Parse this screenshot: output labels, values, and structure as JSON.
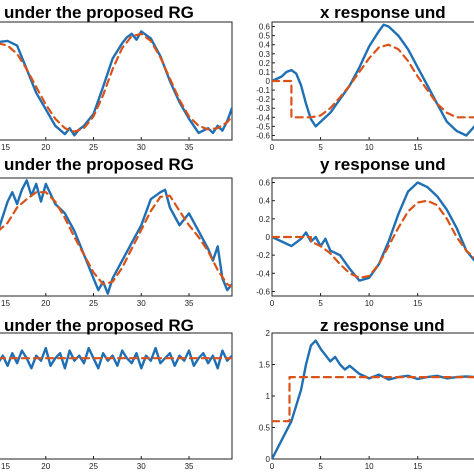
{
  "chart_data": [
    {
      "type": "line",
      "title": "under the proposed RG",
      "xlim": [
        15,
        39.5
      ],
      "ylim": [
        0,
        1
      ],
      "xticks": [
        15,
        20,
        25,
        30,
        35
      ],
      "yticks": [],
      "series": [
        {
          "color": "#1f6fb4",
          "style": "solid",
          "x": [
            15,
            16,
            17,
            18,
            19,
            20,
            21,
            22,
            22.5,
            23,
            23.5,
            24,
            25,
            26,
            27,
            28,
            28.5,
            29,
            29.5,
            30,
            31,
            32,
            33,
            34,
            35,
            36,
            37,
            37.5,
            38,
            38.5,
            39,
            39.5
          ],
          "y": [
            0.83,
            0.84,
            0.8,
            0.6,
            0.4,
            0.26,
            0.12,
            0.05,
            0.1,
            0.04,
            0.09,
            0.12,
            0.22,
            0.45,
            0.69,
            0.82,
            0.87,
            0.9,
            0.85,
            0.92,
            0.86,
            0.71,
            0.5,
            0.32,
            0.18,
            0.06,
            0.1,
            0.06,
            0.12,
            0.08,
            0.16,
            0.27
          ]
        },
        {
          "color": "#d95319",
          "style": "dashed",
          "x": [
            15,
            16,
            17,
            18,
            19,
            20,
            21,
            22,
            23,
            24,
            25,
            26,
            27,
            28,
            29,
            30,
            31,
            32,
            33,
            34,
            35,
            36,
            37,
            38,
            39,
            39.5
          ],
          "y": [
            0.82,
            0.8,
            0.73,
            0.6,
            0.45,
            0.3,
            0.18,
            0.1,
            0.07,
            0.1,
            0.2,
            0.38,
            0.6,
            0.78,
            0.88,
            0.9,
            0.84,
            0.7,
            0.52,
            0.34,
            0.2,
            0.12,
            0.09,
            0.1,
            0.15,
            0.2
          ]
        }
      ]
    },
    {
      "type": "line",
      "title": "x response und",
      "xlim": [
        0,
        21
      ],
      "ylim": [
        -0.65,
        0.65
      ],
      "xticks": [
        0,
        5,
        10,
        15
      ],
      "yticks": [
        0.6,
        0.5,
        0.4,
        0.3,
        0.2,
        0.1,
        0,
        -0.1,
        -0.2,
        -0.3,
        -0.4,
        -0.5,
        -0.6
      ],
      "ytick_labels": [
        "0.6",
        "0.5",
        "0.4",
        "0.3",
        "0.2",
        "0.1",
        "0",
        "-0.1",
        "-0.2",
        "-0.3",
        "-0.4",
        "-0.5",
        "-0.6"
      ],
      "series": [
        {
          "color": "#1f6fb4",
          "style": "solid",
          "x": [
            0,
            1,
            1.5,
            2,
            2.5,
            3,
            3.5,
            4,
            4.5,
            5,
            6,
            7,
            8,
            9,
            10,
            11,
            11.5,
            12,
            13,
            14,
            15,
            16,
            17,
            18,
            19,
            20,
            21
          ],
          "y": [
            0,
            0.05,
            0.1,
            0.12,
            0.08,
            -0.05,
            -0.25,
            -0.42,
            -0.5,
            -0.45,
            -0.35,
            -0.2,
            -0.05,
            0.15,
            0.38,
            0.55,
            0.62,
            0.6,
            0.5,
            0.35,
            0.15,
            -0.05,
            -0.25,
            -0.45,
            -0.55,
            -0.6,
            -0.48
          ]
        },
        {
          "color": "#d95319",
          "style": "dashed",
          "x": [
            0,
            1.8,
            2,
            2,
            4,
            5,
            6,
            7,
            8,
            9,
            10,
            11,
            12,
            13,
            14,
            15,
            16,
            17,
            18,
            19,
            20,
            21
          ],
          "y": [
            0,
            0,
            0,
            -0.4,
            -0.4,
            -0.38,
            -0.3,
            -0.18,
            -0.05,
            0.1,
            0.25,
            0.37,
            0.4,
            0.35,
            0.22,
            0.05,
            -0.1,
            -0.25,
            -0.35,
            -0.4,
            -0.4,
            -0.4
          ]
        }
      ]
    },
    {
      "type": "line",
      "title": "under the proposed RG",
      "xlim": [
        15,
        39.5
      ],
      "ylim": [
        0,
        1
      ],
      "xticks": [
        15,
        20,
        25,
        30,
        35
      ],
      "yticks": [],
      "series": [
        {
          "color": "#1f6fb4",
          "style": "solid",
          "x": [
            15,
            16,
            16.5,
            17,
            17.5,
            18,
            18.5,
            19,
            19.5,
            20,
            21,
            22,
            23,
            24,
            25,
            25.5,
            26,
            26.5,
            27,
            28,
            29,
            30,
            31,
            32,
            32.5,
            33,
            34,
            35,
            36,
            37,
            37.5,
            38,
            38.5,
            39,
            39.5
          ],
          "y": [
            0.55,
            0.8,
            0.88,
            0.78,
            0.9,
            0.98,
            0.85,
            0.95,
            0.8,
            0.95,
            0.78,
            0.7,
            0.55,
            0.35,
            0.15,
            0.05,
            0.12,
            0.02,
            0.15,
            0.3,
            0.45,
            0.6,
            0.82,
            0.88,
            0.9,
            0.75,
            0.6,
            0.7,
            0.55,
            0.4,
            0.3,
            0.42,
            0.15,
            0.05,
            0.1
          ]
        },
        {
          "color": "#d95319",
          "style": "dashed",
          "x": [
            15,
            16,
            17,
            18,
            19,
            20,
            21,
            22,
            23,
            24,
            25,
            26,
            27,
            28,
            29,
            30,
            31,
            32,
            33,
            34,
            35,
            36,
            37,
            38,
            39,
            39.5
          ],
          "y": [
            0.55,
            0.62,
            0.75,
            0.82,
            0.88,
            0.88,
            0.8,
            0.66,
            0.5,
            0.35,
            0.2,
            0.1,
            0.12,
            0.24,
            0.4,
            0.56,
            0.72,
            0.84,
            0.85,
            0.72,
            0.6,
            0.5,
            0.38,
            0.22,
            0.1,
            0.08
          ]
        }
      ]
    },
    {
      "type": "line",
      "title": "y response und",
      "xlim": [
        0,
        21
      ],
      "ylim": [
        -0.65,
        0.65
      ],
      "xticks": [
        0,
        5,
        10,
        15
      ],
      "yticks": [
        0.6,
        0.4,
        0.2,
        0,
        -0.2,
        -0.4,
        -0.6
      ],
      "ytick_labels": [
        "0.6",
        "0.4",
        "0.2",
        "0",
        "-0.2",
        "-0.4",
        "-0.6"
      ],
      "series": [
        {
          "color": "#1f6fb4",
          "style": "solid",
          "x": [
            0,
            1,
            2,
            3,
            3.5,
            4,
            4.5,
            5,
            5.5,
            6,
            7,
            8,
            9,
            10,
            11,
            12,
            13,
            14,
            15,
            16,
            17,
            18,
            19,
            20,
            21
          ],
          "y": [
            0,
            -0.05,
            -0.1,
            -0.02,
            0.05,
            -0.05,
            0,
            -0.1,
            -0.02,
            -0.15,
            -0.2,
            -0.35,
            -0.48,
            -0.45,
            -0.3,
            -0.05,
            0.25,
            0.5,
            0.6,
            0.55,
            0.45,
            0.3,
            0.1,
            -0.15,
            -0.28
          ]
        },
        {
          "color": "#d95319",
          "style": "dashed",
          "x": [
            0,
            4,
            4,
            5,
            6,
            7,
            8,
            9,
            10,
            11,
            12,
            13,
            14,
            15,
            16,
            17,
            18,
            19,
            20,
            21
          ],
          "y": [
            0,
            0,
            -0.05,
            -0.1,
            -0.18,
            -0.3,
            -0.4,
            -0.45,
            -0.43,
            -0.3,
            -0.1,
            0.1,
            0.28,
            0.38,
            0.4,
            0.35,
            0.2,
            0.0,
            -0.15,
            -0.25
          ]
        }
      ]
    },
    {
      "type": "line",
      "title": "under the proposed RG",
      "xlim": [
        15,
        39.5
      ],
      "ylim": [
        0,
        1
      ],
      "xticks": [
        15,
        20,
        25,
        30,
        35
      ],
      "yticks": [],
      "series": [
        {
          "color": "#1f6fb4",
          "style": "solid",
          "x": [
            15,
            15.5,
            16,
            16.5,
            17,
            17.5,
            18,
            18.5,
            19,
            19.5,
            20,
            20.5,
            21,
            21.5,
            22,
            22.5,
            23,
            23.5,
            24,
            24.5,
            25,
            25.5,
            26,
            26.5,
            27,
            27.5,
            28,
            28.5,
            29,
            29.5,
            30,
            30.5,
            31,
            31.5,
            32,
            32.5,
            33,
            33.5,
            34,
            34.5,
            35,
            35.5,
            36,
            36.5,
            37,
            37.5,
            38,
            38.5,
            39,
            39.5
          ],
          "y": [
            0.76,
            0.82,
            0.74,
            0.84,
            0.76,
            0.86,
            0.8,
            0.72,
            0.82,
            0.78,
            0.88,
            0.74,
            0.8,
            0.84,
            0.72,
            0.86,
            0.78,
            0.82,
            0.76,
            0.88,
            0.8,
            0.72,
            0.84,
            0.78,
            0.82,
            0.74,
            0.86,
            0.8,
            0.76,
            0.84,
            0.72,
            0.82,
            0.78,
            0.88,
            0.76,
            0.8,
            0.84,
            0.74,
            0.82,
            0.78,
            0.86,
            0.74,
            0.8,
            0.84,
            0.76,
            0.82,
            0.72,
            0.86,
            0.78,
            0.82
          ]
        },
        {
          "color": "#d95319",
          "style": "dashed",
          "x": [
            15,
            39.5
          ],
          "y": [
            0.8,
            0.8
          ]
        }
      ]
    },
    {
      "type": "line",
      "title": "z response und",
      "xlim": [
        0,
        21
      ],
      "ylim": [
        0,
        2
      ],
      "xticks": [
        0,
        5,
        10,
        15
      ],
      "yticks": [
        0,
        0.5,
        1,
        1.5,
        2
      ],
      "ytick_labels": [
        "0",
        "0.5",
        "1",
        "1.5",
        "2"
      ],
      "series": [
        {
          "color": "#1f6fb4",
          "style": "solid",
          "x": [
            0,
            1,
            2,
            3,
            3.5,
            4,
            4.5,
            5,
            6,
            6.5,
            7,
            7.5,
            8,
            9,
            10,
            11,
            12,
            13,
            14,
            15,
            16,
            17,
            18,
            19,
            20,
            21
          ],
          "y": [
            0,
            0.3,
            0.6,
            1.1,
            1.5,
            1.8,
            1.88,
            1.75,
            1.55,
            1.62,
            1.5,
            1.42,
            1.48,
            1.35,
            1.28,
            1.34,
            1.26,
            1.3,
            1.32,
            1.27,
            1.3,
            1.32,
            1.28,
            1.3,
            1.31,
            1.3
          ]
        },
        {
          "color": "#d95319",
          "style": "dashed",
          "x": [
            0,
            1.8,
            1.8,
            21
          ],
          "y": [
            0.6,
            0.6,
            1.3,
            1.3
          ]
        }
      ]
    }
  ]
}
